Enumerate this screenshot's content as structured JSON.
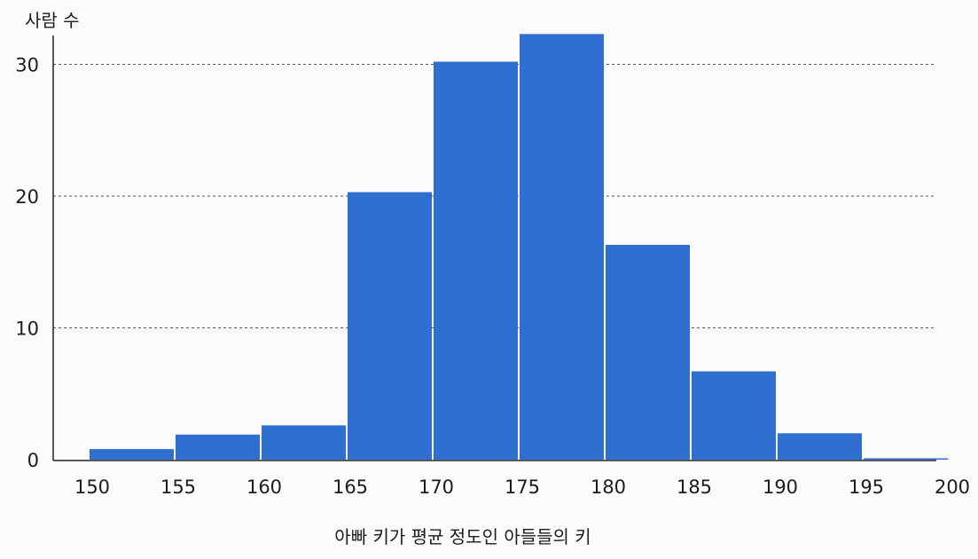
{
  "chart_data": {
    "type": "bar",
    "title": "",
    "ylabel": "사람 수",
    "xlabel": "아빠 키가 평균 정도인 아들들의 키",
    "bin_edges": [
      150,
      155,
      160,
      165,
      170,
      175,
      180,
      185,
      190,
      195,
      200
    ],
    "x_ticks": [
      150,
      155,
      160,
      165,
      170,
      175,
      180,
      185,
      190,
      195,
      200
    ],
    "values": [
      0.8,
      1.9,
      2.6,
      20.3,
      30.2,
      32.3,
      16.3,
      6.7,
      2.0,
      0.1
    ],
    "y_ticks": [
      0,
      10,
      20,
      30
    ],
    "ylim": [
      0,
      33
    ],
    "xlim": [
      145,
      200
    ],
    "grid": "horizontal dashed",
    "colors": {
      "bar": "#2f6fd0",
      "grid": "#555555",
      "axis": "#222222"
    }
  }
}
